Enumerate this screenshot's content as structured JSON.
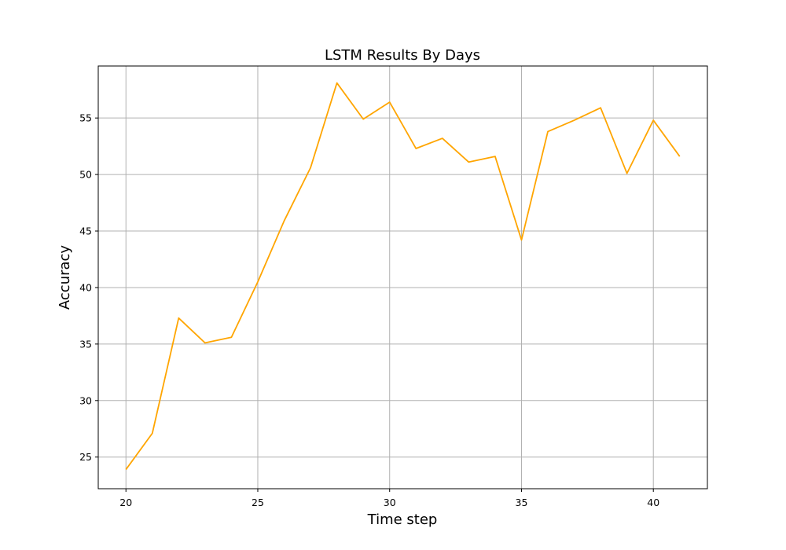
{
  "chart_data": {
    "type": "line",
    "title": "LSTM Results By Days",
    "xlabel": "Time step",
    "ylabel": "Accuracy",
    "xlim": [
      18.95,
      42.05
    ],
    "ylim": [
      22.2,
      59.6
    ],
    "xticks": [
      20,
      25,
      30,
      35,
      40
    ],
    "yticks": [
      25,
      30,
      35,
      40,
      45,
      50,
      55
    ],
    "grid": true,
    "line_color": "#FFA500",
    "series": [
      {
        "x": [
          20,
          21,
          22,
          23,
          24,
          25,
          26,
          27,
          28,
          29,
          30,
          31,
          32,
          33,
          34,
          35,
          36,
          37,
          38,
          39,
          40,
          41
        ],
        "values": [
          23.9,
          27.1,
          37.3,
          35.1,
          35.6,
          40.5,
          45.9,
          50.6,
          58.1,
          54.9,
          56.4,
          52.3,
          53.2,
          51.1,
          51.6,
          44.2,
          53.8,
          54.8,
          55.9,
          50.1,
          54.8,
          51.6
        ]
      }
    ]
  }
}
